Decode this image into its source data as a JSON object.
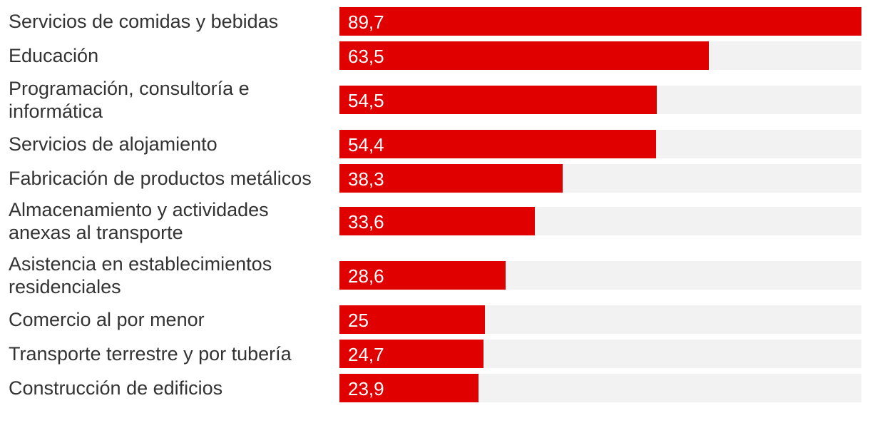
{
  "chart_data": {
    "type": "bar",
    "orientation": "horizontal",
    "title": "",
    "xlabel": "",
    "ylabel": "",
    "xlim": [
      0,
      89.7
    ],
    "grid": false,
    "categories": [
      "Servicios de comidas y bebidas",
      "Educación",
      "Programación, consultoría e informática",
      "Servicios de alojamiento",
      "Fabricación de productos metálicos",
      "Almacenamiento y actividades anexas al transporte",
      "Asistencia en establecimientos residenciales",
      "Comercio al por menor",
      "Transporte terrestre y por tubería",
      "Construcción de edificios"
    ],
    "values": [
      89.7,
      63.5,
      54.5,
      54.4,
      38.3,
      33.6,
      28.6,
      25,
      24.7,
      23.9
    ],
    "value_labels": [
      "89,7",
      "63,5",
      "54,5",
      "54,4",
      "38,3",
      "33,6",
      "28,6",
      "25",
      "24,7",
      "23,9"
    ],
    "colors": {
      "bar": "#e00000",
      "track": "#f2f2f2",
      "label_text": "#333333",
      "value_text": "#ffffff"
    }
  }
}
